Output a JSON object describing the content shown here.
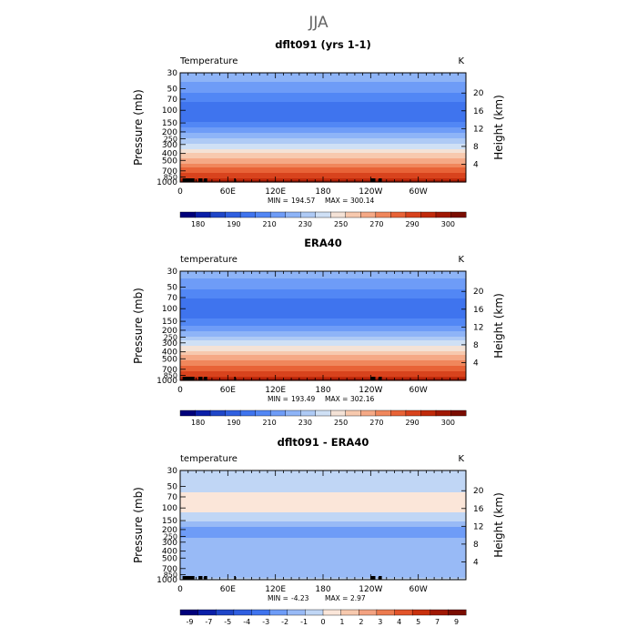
{
  "figure": {
    "season": "JJA"
  },
  "chart_data": [
    {
      "type": "heatmap",
      "title": "dflt091 (yrs 1-1)",
      "field_label": "Temperature",
      "units": "K",
      "ylabel": "Pressure (mb)",
      "y2label": "Height (km)",
      "x_ticks": [
        "0",
        "60E",
        "120E",
        "180",
        "120W",
        "60W"
      ],
      "x_range": [
        0,
        360
      ],
      "y_ticks": [
        "30",
        "50",
        "70",
        "100",
        "150",
        "200",
        "250",
        "300",
        "400",
        "500",
        "700",
        "850",
        "1000"
      ],
      "y_range_mb": [
        30,
        1000
      ],
      "y2_ticks": [
        "20",
        "16",
        "12",
        "8",
        "4"
      ],
      "stats": {
        "min_label": "MIN =",
        "min": "194.57",
        "max_label": "MAX =",
        "max": "300.14"
      },
      "levels": [
        "180",
        "190",
        "210",
        "230",
        "250",
        "270",
        "290",
        "300"
      ],
      "colors": [
        "#00007a",
        "#0a1fa8",
        "#1f46c8",
        "#2f5fe0",
        "#3f74ee",
        "#5287f5",
        "#6e9cf7",
        "#8eb4f7",
        "#aecaf5",
        "#cfe0f5",
        "#f4e2d6",
        "#f7c9ae",
        "#f5a986",
        "#f0875c",
        "#e86337",
        "#d8431d",
        "#c02a0b",
        "#a01803",
        "#7a0d01"
      ],
      "profile": [
        {
          "p": 30,
          "v": 226
        },
        {
          "p": 50,
          "v": 216
        },
        {
          "p": 70,
          "v": 207
        },
        {
          "p": 100,
          "v": 199
        },
        {
          "p": 150,
          "v": 206
        },
        {
          "p": 200,
          "v": 218
        },
        {
          "p": 250,
          "v": 228
        },
        {
          "p": 300,
          "v": 237
        },
        {
          "p": 400,
          "v": 252
        },
        {
          "p": 500,
          "v": 263
        },
        {
          "p": 700,
          "v": 279
        },
        {
          "p": 850,
          "v": 287
        },
        {
          "p": 1000,
          "v": 296
        }
      ]
    },
    {
      "type": "heatmap",
      "title": "ERA40",
      "field_label": "temperature",
      "units": "K",
      "ylabel": "Pressure (mb)",
      "y2label": "Height (km)",
      "x_ticks": [
        "0",
        "60E",
        "120E",
        "180",
        "120W",
        "60W"
      ],
      "x_range": [
        0,
        360
      ],
      "y_ticks": [
        "30",
        "50",
        "70",
        "100",
        "150",
        "200",
        "250",
        "300",
        "400",
        "500",
        "700",
        "850",
        "1000"
      ],
      "y_range_mb": [
        30,
        1000
      ],
      "y2_ticks": [
        "20",
        "16",
        "12",
        "8",
        "4"
      ],
      "stats": {
        "min_label": "MIN =",
        "min": "193.49",
        "max_label": "MAX =",
        "max": "302.16"
      },
      "levels": [
        "180",
        "190",
        "210",
        "230",
        "250",
        "270",
        "290",
        "300"
      ],
      "colors": [
        "#00007a",
        "#0a1fa8",
        "#1f46c8",
        "#2f5fe0",
        "#3f74ee",
        "#5287f5",
        "#6e9cf7",
        "#8eb4f7",
        "#aecaf5",
        "#cfe0f5",
        "#f4e2d6",
        "#f7c9ae",
        "#f5a986",
        "#f0875c",
        "#e86337",
        "#d8431d",
        "#c02a0b",
        "#a01803",
        "#7a0d01"
      ],
      "profile": [
        {
          "p": 30,
          "v": 225
        },
        {
          "p": 50,
          "v": 215
        },
        {
          "p": 70,
          "v": 206
        },
        {
          "p": 100,
          "v": 198
        },
        {
          "p": 150,
          "v": 207
        },
        {
          "p": 200,
          "v": 219
        },
        {
          "p": 250,
          "v": 229
        },
        {
          "p": 300,
          "v": 239
        },
        {
          "p": 400,
          "v": 254
        },
        {
          "p": 500,
          "v": 265
        },
        {
          "p": 700,
          "v": 281
        },
        {
          "p": 850,
          "v": 289
        },
        {
          "p": 1000,
          "v": 298
        }
      ]
    },
    {
      "type": "heatmap",
      "title": "dflt091 - ERA40",
      "field_label": "temperature",
      "units": "K",
      "ylabel": "Pressure (mb)",
      "y2label": "Height (km)",
      "x_ticks": [
        "0",
        "60E",
        "120E",
        "180",
        "120W",
        "60W"
      ],
      "x_range": [
        0,
        360
      ],
      "y_ticks": [
        "30",
        "50",
        "70",
        "100",
        "150",
        "200",
        "250",
        "300",
        "400",
        "500",
        "700",
        "850",
        "1000"
      ],
      "y_range_mb": [
        30,
        1000
      ],
      "y2_ticks": [
        "20",
        "16",
        "12",
        "8",
        "4"
      ],
      "stats": {
        "min_label": "MIN =",
        "min": "-4.23",
        "max_label": "MAX =",
        "max": "2.97"
      },
      "levels": [
        "-9",
        "-7",
        "-5",
        "-4",
        "-3",
        "-2",
        "-1",
        "0",
        "1",
        "2",
        "3",
        "4",
        "5",
        "7",
        "9"
      ],
      "colors": [
        "#00007a",
        "#0a1fa8",
        "#1f46c8",
        "#2f5fe0",
        "#3f74ee",
        "#6e9cf7",
        "#98baf6",
        "#c0d6f5",
        "#fbe6d9",
        "#f7c9ae",
        "#f3a281",
        "#ec7b4f",
        "#e2542a",
        "#c8300c",
        "#a01803",
        "#7a0d01"
      ],
      "profile": [
        {
          "p": 30,
          "v": -0.5
        },
        {
          "p": 50,
          "v": -0.5
        },
        {
          "p": 70,
          "v": 0.3
        },
        {
          "p": 100,
          "v": 0.5
        },
        {
          "p": 150,
          "v": -0.8
        },
        {
          "p": 200,
          "v": -2.3
        },
        {
          "p": 250,
          "v": -2.1
        },
        {
          "p": 300,
          "v": -1.5
        },
        {
          "p": 400,
          "v": -1.4
        },
        {
          "p": 500,
          "v": -1.6
        },
        {
          "p": 700,
          "v": -1.5
        },
        {
          "p": 850,
          "v": -1.2
        },
        {
          "p": 1000,
          "v": -0.8
        }
      ]
    }
  ]
}
